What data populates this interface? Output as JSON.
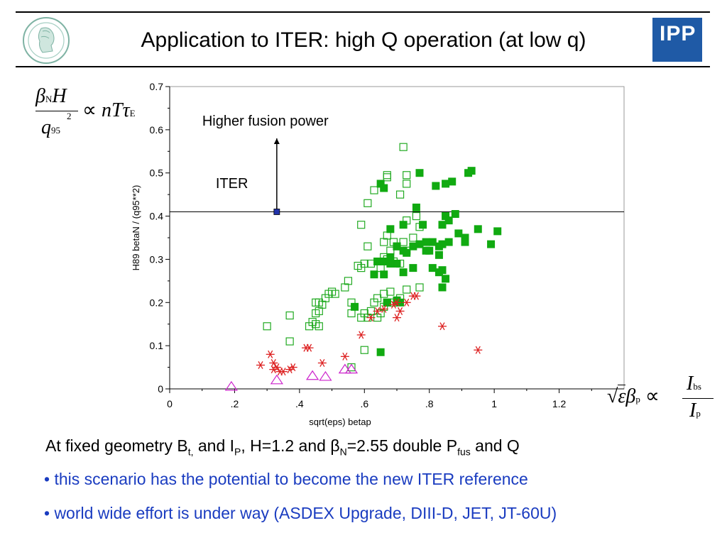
{
  "slide": {
    "title": "Application to ITER: high Q operation (at low q)",
    "logo_text": "IPP",
    "caption": {
      "t1": "At fixed geometry B",
      "s1": "t,",
      "t2": " and I",
      "s2": "P",
      "t3": ", H=1.2 and ",
      "beta": "β",
      "s3": "N",
      "t4": "=2.55 double P",
      "s4": "fus",
      "t5": " and Q"
    },
    "bullets": [
      "• this scenario has the potential to become the new ITER reference",
      "• world wide effort is under way (ASDEX Upgrade, DIII-D, JET, JT-60U)"
    ],
    "colors": {
      "accent_blue": "#1a3cc0",
      "logo_blue": "#1f5aa6"
    }
  },
  "chart_data": {
    "type": "scatter",
    "xlabel": "sqrt(eps) betap",
    "ylabel": "H89 betaN / (q95**2)",
    "xlim": [
      0,
      1.4
    ],
    "ylim": [
      0,
      0.7
    ],
    "xticks": [
      0,
      0.2,
      0.4,
      0.6,
      0.8,
      1,
      1.2
    ],
    "xtick_labels": [
      "0",
      ".2",
      ".4",
      ".6",
      ".8",
      "1",
      "1.2"
    ],
    "yticks": [
      0,
      0.1,
      0.2,
      0.3,
      0.4,
      0.5,
      0.6,
      0.7
    ],
    "ytick_labels": [
      "0",
      "0.1",
      "0.2",
      "0.3",
      "0.4",
      "0.5",
      "0.6",
      "0.7"
    ],
    "grid": false,
    "series": [
      {
        "marker": "open-square",
        "color": "#22aa22",
        "points": [
          [
            0.72,
            0.56
          ],
          [
            0.67,
            0.495
          ],
          [
            0.67,
            0.49
          ],
          [
            0.73,
            0.495
          ],
          [
            0.73,
            0.475
          ],
          [
            0.63,
            0.46
          ],
          [
            0.61,
            0.43
          ],
          [
            0.71,
            0.45
          ],
          [
            0.76,
            0.4
          ],
          [
            0.59,
            0.38
          ],
          [
            0.73,
            0.39
          ],
          [
            0.77,
            0.375
          ],
          [
            0.75,
            0.35
          ],
          [
            0.66,
            0.34
          ],
          [
            0.67,
            0.355
          ],
          [
            0.69,
            0.34
          ],
          [
            0.72,
            0.34
          ],
          [
            0.7,
            0.33
          ],
          [
            0.61,
            0.33
          ],
          [
            0.68,
            0.32
          ],
          [
            0.73,
            0.32
          ],
          [
            0.66,
            0.305
          ],
          [
            0.67,
            0.3
          ],
          [
            0.69,
            0.295
          ],
          [
            0.71,
            0.29
          ],
          [
            0.62,
            0.29
          ],
          [
            0.58,
            0.285
          ],
          [
            0.59,
            0.28
          ],
          [
            0.6,
            0.29
          ],
          [
            0.65,
            0.28
          ],
          [
            0.55,
            0.25
          ],
          [
            0.54,
            0.235
          ],
          [
            0.51,
            0.22
          ],
          [
            0.5,
            0.225
          ],
          [
            0.49,
            0.22
          ],
          [
            0.48,
            0.21
          ],
          [
            0.47,
            0.195
          ],
          [
            0.46,
            0.2
          ],
          [
            0.45,
            0.2
          ],
          [
            0.46,
            0.18
          ],
          [
            0.45,
            0.175
          ],
          [
            0.44,
            0.155
          ],
          [
            0.45,
            0.15
          ],
          [
            0.46,
            0.145
          ],
          [
            0.43,
            0.145
          ],
          [
            0.37,
            0.17
          ],
          [
            0.3,
            0.145
          ],
          [
            0.37,
            0.11
          ],
          [
            0.56,
            0.2
          ],
          [
            0.66,
            0.22
          ],
          [
            0.68,
            0.225
          ],
          [
            0.69,
            0.2
          ],
          [
            0.71,
            0.21
          ],
          [
            0.73,
            0.23
          ],
          [
            0.77,
            0.235
          ],
          [
            0.64,
            0.21
          ],
          [
            0.63,
            0.2
          ],
          [
            0.62,
            0.18
          ],
          [
            0.59,
            0.165
          ],
          [
            0.6,
            0.175
          ],
          [
            0.61,
            0.165
          ],
          [
            0.56,
            0.175
          ],
          [
            0.67,
            0.2
          ],
          [
            0.66,
            0.19
          ],
          [
            0.65,
            0.175
          ],
          [
            0.64,
            0.165
          ],
          [
            0.6,
            0.09
          ],
          [
            0.56,
            0.05
          ]
        ]
      },
      {
        "marker": "filled-square",
        "color": "#11aa11",
        "points": [
          [
            0.77,
            0.5
          ],
          [
            0.93,
            0.505
          ],
          [
            0.92,
            0.5
          ],
          [
            0.87,
            0.48
          ],
          [
            0.82,
            0.47
          ],
          [
            0.85,
            0.475
          ],
          [
            0.65,
            0.475
          ],
          [
            0.66,
            0.465
          ],
          [
            0.76,
            0.42
          ],
          [
            0.85,
            0.4
          ],
          [
            0.86,
            0.39
          ],
          [
            0.88,
            0.405
          ],
          [
            0.84,
            0.38
          ],
          [
            0.78,
            0.38
          ],
          [
            0.72,
            0.38
          ],
          [
            0.68,
            0.37
          ],
          [
            0.89,
            0.36
          ],
          [
            0.95,
            0.37
          ],
          [
            1.01,
            0.365
          ],
          [
            0.91,
            0.35
          ],
          [
            0.91,
            0.34
          ],
          [
            0.99,
            0.335
          ],
          [
            0.86,
            0.34
          ],
          [
            0.84,
            0.335
          ],
          [
            0.83,
            0.33
          ],
          [
            0.81,
            0.34
          ],
          [
            0.79,
            0.34
          ],
          [
            0.77,
            0.335
          ],
          [
            0.75,
            0.33
          ],
          [
            0.7,
            0.33
          ],
          [
            0.72,
            0.32
          ],
          [
            0.73,
            0.315
          ],
          [
            0.79,
            0.32
          ],
          [
            0.8,
            0.32
          ],
          [
            0.83,
            0.31
          ],
          [
            0.68,
            0.305
          ],
          [
            0.64,
            0.295
          ],
          [
            0.66,
            0.295
          ],
          [
            0.7,
            0.29
          ],
          [
            0.68,
            0.29
          ],
          [
            0.72,
            0.27
          ],
          [
            0.66,
            0.265
          ],
          [
            0.63,
            0.265
          ],
          [
            0.75,
            0.28
          ],
          [
            0.81,
            0.28
          ],
          [
            0.84,
            0.275
          ],
          [
            0.83,
            0.27
          ],
          [
            0.85,
            0.255
          ],
          [
            0.84,
            0.235
          ],
          [
            0.7,
            0.205
          ],
          [
            0.71,
            0.2
          ],
          [
            0.67,
            0.2
          ],
          [
            0.57,
            0.19
          ],
          [
            0.65,
            0.085
          ]
        ]
      },
      {
        "marker": "asterisk",
        "color": "#dd2222",
        "points": [
          [
            0.31,
            0.08
          ],
          [
            0.32,
            0.06
          ],
          [
            0.33,
            0.05
          ],
          [
            0.28,
            0.055
          ],
          [
            0.32,
            0.045
          ],
          [
            0.35,
            0.04
          ],
          [
            0.37,
            0.045
          ],
          [
            0.38,
            0.05
          ],
          [
            0.34,
            0.04
          ],
          [
            0.42,
            0.095
          ],
          [
            0.43,
            0.095
          ],
          [
            0.47,
            0.06
          ],
          [
            0.54,
            0.075
          ],
          [
            0.59,
            0.125
          ],
          [
            0.62,
            0.165
          ],
          [
            0.64,
            0.18
          ],
          [
            0.66,
            0.185
          ],
          [
            0.69,
            0.195
          ],
          [
            0.7,
            0.2
          ],
          [
            0.7,
            0.165
          ],
          [
            0.71,
            0.18
          ],
          [
            0.73,
            0.2
          ],
          [
            0.75,
            0.215
          ],
          [
            0.76,
            0.215
          ],
          [
            0.84,
            0.145
          ],
          [
            0.95,
            0.09
          ]
        ]
      },
      {
        "marker": "open-triangle",
        "color": "#cc22cc",
        "points": [
          [
            0.19,
            0.005
          ],
          [
            0.33,
            0.02
          ],
          [
            0.44,
            0.03
          ],
          [
            0.48,
            0.028
          ],
          [
            0.54,
            0.045
          ],
          [
            0.56,
            0.045
          ]
        ]
      }
    ],
    "iter_point": {
      "x": 0.33,
      "y": 0.41,
      "color": "#2233aa"
    },
    "reference_line_y": 0.41,
    "annotations": {
      "iter_label": "ITER",
      "arrow_label": "Higher fusion power"
    }
  }
}
